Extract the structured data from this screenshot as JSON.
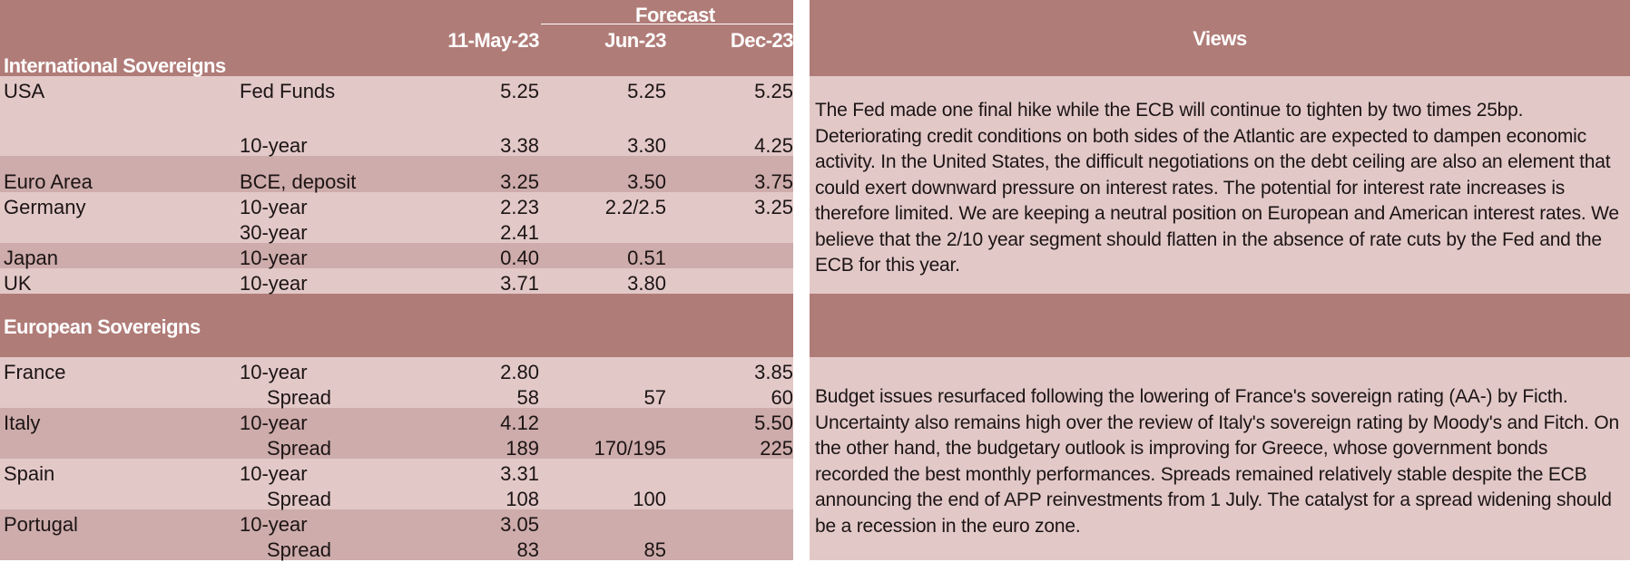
{
  "header": {
    "forecast_label": "Forecast",
    "col_current": "11-May-23",
    "col_f1": "Jun-23",
    "col_f2": "Dec-23",
    "views_label": "Views"
  },
  "international": {
    "section_label": "International Sovereigns",
    "rows": [
      {
        "country": "USA",
        "instrument": "Fed Funds",
        "current": "5.25",
        "f1": "5.25",
        "f2": "5.25"
      },
      {
        "country": "",
        "instrument": "10-year",
        "current": "3.38",
        "f1": "3.30",
        "f2": "4.25"
      },
      {
        "country": "Euro Area",
        "instrument": "BCE, deposit",
        "current": "3.25",
        "f1": "3.50",
        "f2": "3.75"
      },
      {
        "country": "Germany",
        "instrument": "10-year",
        "current": "2.23",
        "f1": "2.2/2.5",
        "f2": "3.25"
      },
      {
        "country": "",
        "instrument": "30-year",
        "current": "2.41",
        "f1": "",
        "f2": ""
      },
      {
        "country": "Japan",
        "instrument": "10-year",
        "current": "0.40",
        "f1": "0.51",
        "f2": ""
      },
      {
        "country": "UK",
        "instrument": "10-year",
        "current": "3.71",
        "f1": "3.80",
        "f2": ""
      }
    ],
    "view": "The Fed made one final hike while the ECB will continue to tighten by two times 25bp. Deteriorating credit conditions on both sides of the Atlantic are expected to dampen economic activity. In the United States, the difficult negotiations on the debt ceiling are also an element that could exert downward pressure on interest rates. The potential for interest rate increases is therefore limited. We are keeping a neutral position on European and American interest rates. We believe that the 2/10 year segment should flatten in the absence of rate cuts by the Fed and the ECB for this year."
  },
  "european": {
    "section_label": "European Sovereigns",
    "rows": [
      {
        "country": "France",
        "instrument": "10-year",
        "current": "2.80",
        "f1": "",
        "f2": "3.85"
      },
      {
        "country": "",
        "instrument": "Spread",
        "current": "58",
        "f1": "57",
        "f2": "60"
      },
      {
        "country": "Italy",
        "instrument": "10-year",
        "current": "4.12",
        "f1": "",
        "f2": "5.50"
      },
      {
        "country": "",
        "instrument": "Spread",
        "current": "189",
        "f1": "170/195",
        "f2": "225"
      },
      {
        "country": "Spain",
        "instrument": "10-year",
        "current": "3.31",
        "f1": "",
        "f2": ""
      },
      {
        "country": "",
        "instrument": "Spread",
        "current": "108",
        "f1": "100",
        "f2": ""
      },
      {
        "country": "Portugal",
        "instrument": "10-year",
        "current": "3.05",
        "f1": "",
        "f2": ""
      },
      {
        "country": "",
        "instrument": "Spread",
        "current": "83",
        "f1": "85",
        "f2": ""
      }
    ],
    "view": "Budget issues resurfaced following the lowering of France's sovereign rating (AA-) by Ficth. Uncertainty also remains high over the review of Italy's sovereign rating by Moody's and Fitch. On the other hand, the budgetary outlook is improving for Greece, whose government bonds recorded the best monthly performances. Spreads remained relatively stable despite the ECB announcing the end of APP reinvestments from 1 July. The catalyst for a spread widening should be a recession in the euro zone."
  },
  "colors": {
    "header_band": "#b07c78",
    "light_band": "#e2c9c8",
    "mid_band": "#cdacab"
  }
}
